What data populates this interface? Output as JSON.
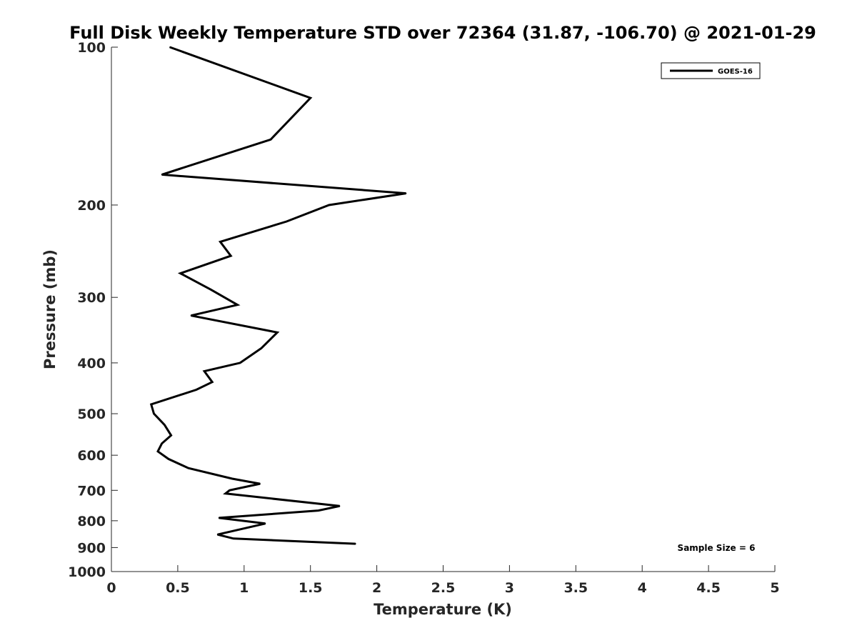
{
  "chart_data": {
    "type": "line",
    "title": "Full Disk Weekly Temperature STD over 72364 (31.87, -106.70) @ 2021-01-29",
    "xlabel": "Temperature (K)",
    "ylabel": "Pressure (mb)",
    "xlim": [
      0,
      5
    ],
    "ylim": [
      1000,
      100
    ],
    "yscale": "log",
    "y_reversed": true,
    "grid": false,
    "legend_position": "top-right",
    "x_ticks": [
      0,
      0.5,
      1,
      1.5,
      2,
      2.5,
      3,
      3.5,
      4,
      4.5,
      5
    ],
    "x_tick_labels": [
      "0",
      "0.5",
      "1",
      "1.5",
      "2",
      "2.5",
      "3",
      "3.5",
      "4",
      "4.5",
      "5"
    ],
    "y_ticks": [
      100,
      200,
      300,
      400,
      500,
      600,
      700,
      800,
      900,
      1000
    ],
    "y_tick_labels": [
      "100",
      "200",
      "300",
      "400",
      "500",
      "600",
      "700",
      "800",
      "900",
      "1000"
    ],
    "series": [
      {
        "name": "GOES-16",
        "color": "#000000",
        "points": [
          {
            "x": 0.44,
            "y": 100
          },
          {
            "x": 1.5,
            "y": 125
          },
          {
            "x": 1.2,
            "y": 150
          },
          {
            "x": 0.38,
            "y": 175
          },
          {
            "x": 2.22,
            "y": 190
          },
          {
            "x": 1.64,
            "y": 200
          },
          {
            "x": 1.32,
            "y": 215
          },
          {
            "x": 0.82,
            "y": 235
          },
          {
            "x": 0.9,
            "y": 250
          },
          {
            "x": 0.52,
            "y": 270
          },
          {
            "x": 0.75,
            "y": 290
          },
          {
            "x": 0.95,
            "y": 310
          },
          {
            "x": 0.6,
            "y": 325
          },
          {
            "x": 1.25,
            "y": 350
          },
          {
            "x": 1.13,
            "y": 375
          },
          {
            "x": 0.97,
            "y": 400
          },
          {
            "x": 0.7,
            "y": 415
          },
          {
            "x": 0.76,
            "y": 435
          },
          {
            "x": 0.64,
            "y": 450
          },
          {
            "x": 0.3,
            "y": 480
          },
          {
            "x": 0.32,
            "y": 500
          },
          {
            "x": 0.4,
            "y": 525
          },
          {
            "x": 0.45,
            "y": 550
          },
          {
            "x": 0.38,
            "y": 570
          },
          {
            "x": 0.35,
            "y": 590
          },
          {
            "x": 0.43,
            "y": 610
          },
          {
            "x": 0.58,
            "y": 635
          },
          {
            "x": 0.91,
            "y": 665
          },
          {
            "x": 1.12,
            "y": 680
          },
          {
            "x": 0.89,
            "y": 700
          },
          {
            "x": 0.86,
            "y": 710
          },
          {
            "x": 1.72,
            "y": 750
          },
          {
            "x": 1.56,
            "y": 765
          },
          {
            "x": 0.81,
            "y": 790
          },
          {
            "x": 1.16,
            "y": 810
          },
          {
            "x": 0.8,
            "y": 850
          },
          {
            "x": 0.92,
            "y": 865
          },
          {
            "x": 1.84,
            "y": 885
          }
        ]
      }
    ],
    "annotations": [
      "Sample Size = 6"
    ]
  }
}
